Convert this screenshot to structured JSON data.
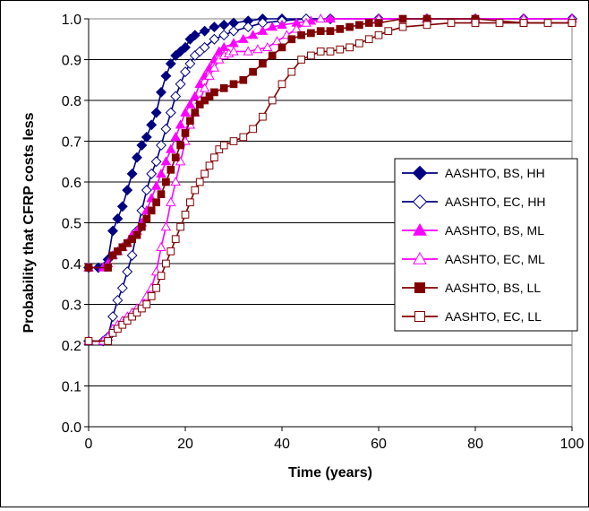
{
  "chart_data": {
    "type": "line",
    "xlabel": "Time (years)",
    "ylabel": "Probability that CFRP costs less",
    "xlim": [
      0,
      100
    ],
    "ylim": [
      0.0,
      1.0
    ],
    "x_ticks": [
      "0",
      "20",
      "40",
      "60",
      "80",
      "100"
    ],
    "y_ticks": [
      "0.0",
      "0.1",
      "0.2",
      "0.3",
      "0.4",
      "0.5",
      "0.6",
      "0.7",
      "0.8",
      "0.9",
      "1.0"
    ],
    "grid": "horizontal",
    "legend_position": "right",
    "series": [
      {
        "name": "AASHTO, BS, HH",
        "color": "#000080",
        "marker": "diamond",
        "filled": true,
        "points": [
          [
            0,
            0.39
          ],
          [
            2,
            0.39
          ],
          [
            4,
            0.41
          ],
          [
            5,
            0.48
          ],
          [
            6,
            0.51
          ],
          [
            7,
            0.54
          ],
          [
            8,
            0.58
          ],
          [
            9,
            0.62
          ],
          [
            10,
            0.66
          ],
          [
            11,
            0.69
          ],
          [
            12,
            0.71
          ],
          [
            13,
            0.74
          ],
          [
            14,
            0.77
          ],
          [
            15,
            0.82
          ],
          [
            16,
            0.86
          ],
          [
            17,
            0.89
          ],
          [
            18,
            0.91
          ],
          [
            19,
            0.92
          ],
          [
            20,
            0.93
          ],
          [
            21,
            0.95
          ],
          [
            22,
            0.96
          ],
          [
            24,
            0.97
          ],
          [
            26,
            0.98
          ],
          [
            28,
            0.985
          ],
          [
            30,
            0.99
          ],
          [
            33,
            0.995
          ],
          [
            36,
            1.0
          ],
          [
            40,
            1.0
          ],
          [
            50,
            1.0
          ],
          [
            60,
            1.0
          ],
          [
            70,
            1.0
          ],
          [
            80,
            1.0
          ],
          [
            90,
            1.0
          ],
          [
            100,
            1.0
          ]
        ]
      },
      {
        "name": "AASHTO, EC, HH",
        "color": "#000080",
        "marker": "diamond",
        "filled": false,
        "points": [
          [
            0,
            0.21
          ],
          [
            3,
            0.21
          ],
          [
            4,
            0.22
          ],
          [
            5,
            0.27
          ],
          [
            6,
            0.31
          ],
          [
            7,
            0.34
          ],
          [
            8,
            0.38
          ],
          [
            9,
            0.42
          ],
          [
            10,
            0.48
          ],
          [
            11,
            0.53
          ],
          [
            12,
            0.58
          ],
          [
            13,
            0.62
          ],
          [
            14,
            0.65
          ],
          [
            15,
            0.69
          ],
          [
            16,
            0.73
          ],
          [
            17,
            0.77
          ],
          [
            18,
            0.81
          ],
          [
            19,
            0.84
          ],
          [
            20,
            0.87
          ],
          [
            21,
            0.89
          ],
          [
            22,
            0.91
          ],
          [
            23,
            0.92
          ],
          [
            24,
            0.93
          ],
          [
            26,
            0.95
          ],
          [
            28,
            0.96
          ],
          [
            30,
            0.97
          ],
          [
            33,
            0.98
          ],
          [
            36,
            0.99
          ],
          [
            40,
            0.995
          ],
          [
            45,
            1.0
          ],
          [
            50,
            1.0
          ],
          [
            60,
            1.0
          ],
          [
            70,
            1.0
          ],
          [
            80,
            1.0
          ],
          [
            90,
            1.0
          ],
          [
            100,
            1.0
          ]
        ]
      },
      {
        "name": "AASHTO, BS, ML",
        "color": "#ff00ff",
        "marker": "triangle",
        "filled": true,
        "points": [
          [
            0,
            0.39
          ],
          [
            3,
            0.39
          ],
          [
            4,
            0.4
          ],
          [
            5,
            0.42
          ],
          [
            6,
            0.43
          ],
          [
            7,
            0.44
          ],
          [
            8,
            0.45
          ],
          [
            9,
            0.47
          ],
          [
            10,
            0.48
          ],
          [
            11,
            0.5
          ],
          [
            12,
            0.53
          ],
          [
            13,
            0.56
          ],
          [
            14,
            0.59
          ],
          [
            15,
            0.62
          ],
          [
            16,
            0.65
          ],
          [
            17,
            0.68
          ],
          [
            18,
            0.71
          ],
          [
            19,
            0.74
          ],
          [
            20,
            0.77
          ],
          [
            21,
            0.79
          ],
          [
            22,
            0.81
          ],
          [
            23,
            0.84
          ],
          [
            24,
            0.86
          ],
          [
            25,
            0.88
          ],
          [
            26,
            0.9
          ],
          [
            27,
            0.92
          ],
          [
            28,
            0.93
          ],
          [
            30,
            0.94
          ],
          [
            32,
            0.95
          ],
          [
            34,
            0.96
          ],
          [
            36,
            0.97
          ],
          [
            38,
            0.98
          ],
          [
            40,
            0.985
          ],
          [
            43,
            0.99
          ],
          [
            46,
            0.995
          ],
          [
            50,
            1.0
          ],
          [
            60,
            1.0
          ],
          [
            70,
            1.0
          ],
          [
            80,
            1.0
          ],
          [
            90,
            1.0
          ],
          [
            100,
            1.0
          ]
        ]
      },
      {
        "name": "AASHTO, EC, ML",
        "color": "#ff00ff",
        "marker": "triangle",
        "filled": false,
        "points": [
          [
            0,
            0.21
          ],
          [
            3,
            0.21
          ],
          [
            4,
            0.22
          ],
          [
            5,
            0.24
          ],
          [
            6,
            0.25
          ],
          [
            7,
            0.26
          ],
          [
            8,
            0.27
          ],
          [
            9,
            0.28
          ],
          [
            10,
            0.29
          ],
          [
            11,
            0.3
          ],
          [
            12,
            0.32
          ],
          [
            13,
            0.34
          ],
          [
            14,
            0.38
          ],
          [
            15,
            0.44
          ],
          [
            16,
            0.49
          ],
          [
            17,
            0.55
          ],
          [
            18,
            0.6
          ],
          [
            19,
            0.65
          ],
          [
            20,
            0.7
          ],
          [
            21,
            0.74
          ],
          [
            22,
            0.77
          ],
          [
            23,
            0.8
          ],
          [
            24,
            0.83
          ],
          [
            25,
            0.86
          ],
          [
            26,
            0.88
          ],
          [
            27,
            0.9
          ],
          [
            28,
            0.91
          ],
          [
            29,
            0.915
          ],
          [
            30,
            0.92
          ],
          [
            33,
            0.92
          ],
          [
            35,
            0.925
          ],
          [
            37,
            0.93
          ],
          [
            39,
            0.945
          ],
          [
            41,
            0.96
          ],
          [
            43,
            0.975
          ],
          [
            45,
            0.99
          ],
          [
            48,
            1.0
          ],
          [
            60,
            1.0
          ],
          [
            70,
            1.0
          ],
          [
            80,
            1.0
          ],
          [
            90,
            1.0
          ],
          [
            100,
            1.0
          ]
        ]
      },
      {
        "name": "AASHTO, BS, LL",
        "color": "#800000",
        "marker": "square",
        "filled": true,
        "points": [
          [
            0,
            0.39
          ],
          [
            4,
            0.39
          ],
          [
            5,
            0.42
          ],
          [
            6,
            0.43
          ],
          [
            7,
            0.44
          ],
          [
            8,
            0.45
          ],
          [
            9,
            0.46
          ],
          [
            10,
            0.47
          ],
          [
            11,
            0.49
          ],
          [
            12,
            0.51
          ],
          [
            13,
            0.53
          ],
          [
            14,
            0.55
          ],
          [
            15,
            0.57
          ],
          [
            16,
            0.6
          ],
          [
            17,
            0.63
          ],
          [
            18,
            0.66
          ],
          [
            19,
            0.69
          ],
          [
            20,
            0.72
          ],
          [
            21,
            0.75
          ],
          [
            22,
            0.77
          ],
          [
            23,
            0.79
          ],
          [
            24,
            0.8
          ],
          [
            25,
            0.81
          ],
          [
            26,
            0.82
          ],
          [
            28,
            0.83
          ],
          [
            30,
            0.84
          ],
          [
            32,
            0.85
          ],
          [
            34,
            0.87
          ],
          [
            36,
            0.89
          ],
          [
            38,
            0.91
          ],
          [
            40,
            0.93
          ],
          [
            42,
            0.95
          ],
          [
            44,
            0.96
          ],
          [
            46,
            0.965
          ],
          [
            48,
            0.97
          ],
          [
            50,
            0.97
          ],
          [
            52,
            0.975
          ],
          [
            54,
            0.98
          ],
          [
            56,
            0.985
          ],
          [
            58,
            0.99
          ],
          [
            60,
            0.99
          ],
          [
            65,
            1.0
          ],
          [
            70,
            1.0
          ],
          [
            80,
            1.0
          ],
          [
            90,
            0.99
          ],
          [
            100,
            0.99
          ]
        ]
      },
      {
        "name": "AASHTO, EC, LL",
        "color": "#800000",
        "marker": "square",
        "filled": false,
        "points": [
          [
            0,
            0.21
          ],
          [
            4,
            0.21
          ],
          [
            5,
            0.23
          ],
          [
            6,
            0.24
          ],
          [
            7,
            0.25
          ],
          [
            8,
            0.26
          ],
          [
            9,
            0.27
          ],
          [
            10,
            0.28
          ],
          [
            11,
            0.29
          ],
          [
            12,
            0.3
          ],
          [
            13,
            0.32
          ],
          [
            14,
            0.34
          ],
          [
            15,
            0.37
          ],
          [
            16,
            0.4
          ],
          [
            17,
            0.43
          ],
          [
            18,
            0.46
          ],
          [
            19,
            0.49
          ],
          [
            20,
            0.52
          ],
          [
            21,
            0.55
          ],
          [
            22,
            0.58
          ],
          [
            23,
            0.6
          ],
          [
            24,
            0.62
          ],
          [
            25,
            0.64
          ],
          [
            26,
            0.66
          ],
          [
            27,
            0.68
          ],
          [
            28,
            0.69
          ],
          [
            30,
            0.7
          ],
          [
            32,
            0.71
          ],
          [
            34,
            0.73
          ],
          [
            36,
            0.76
          ],
          [
            38,
            0.8
          ],
          [
            40,
            0.84
          ],
          [
            42,
            0.87
          ],
          [
            44,
            0.9
          ],
          [
            46,
            0.91
          ],
          [
            48,
            0.92
          ],
          [
            50,
            0.92
          ],
          [
            52,
            0.925
          ],
          [
            54,
            0.93
          ],
          [
            56,
            0.94
          ],
          [
            58,
            0.95
          ],
          [
            60,
            0.96
          ],
          [
            62,
            0.97
          ],
          [
            65,
            0.98
          ],
          [
            70,
            0.985
          ],
          [
            75,
            0.99
          ],
          [
            80,
            0.99
          ],
          [
            85,
            0.99
          ],
          [
            90,
            0.99
          ],
          [
            95,
            0.99
          ],
          [
            100,
            0.99
          ]
        ]
      }
    ]
  }
}
